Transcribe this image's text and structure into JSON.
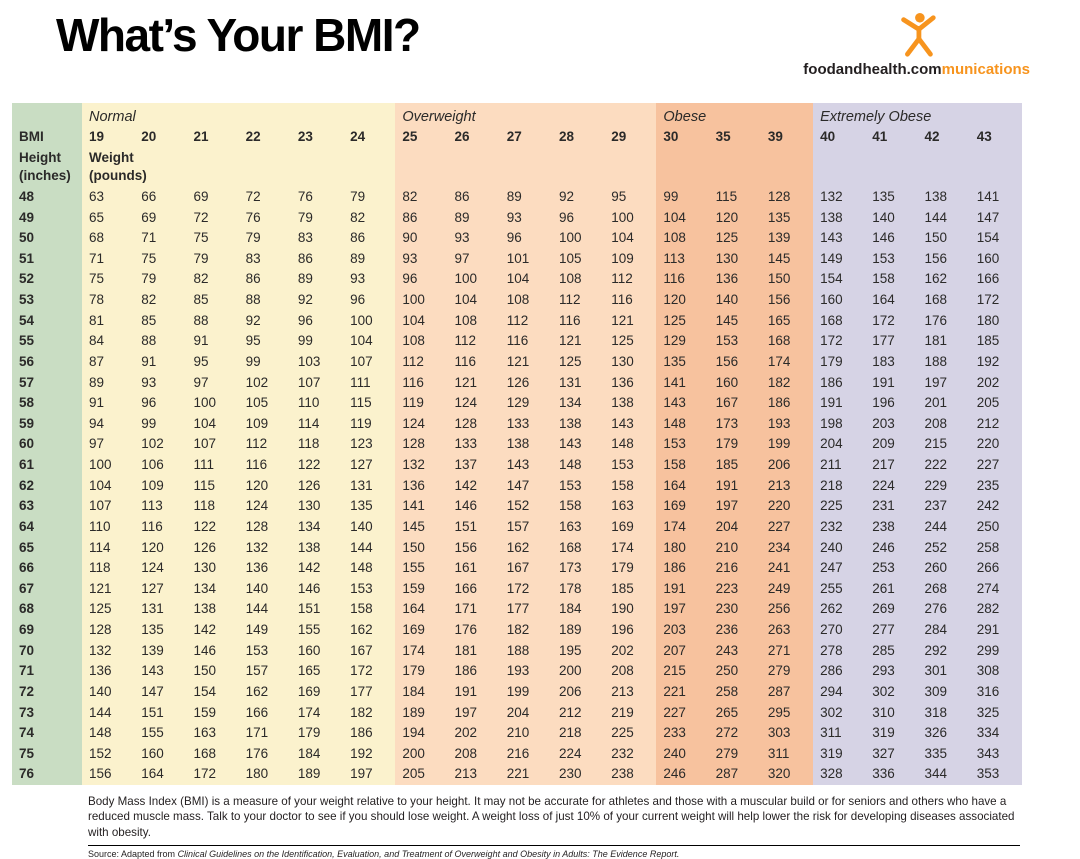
{
  "page": {
    "title": "What’s Your BMI?"
  },
  "logo": {
    "brand_dark": "foodandhealth.com",
    "brand_accent": "munications",
    "accent_color": "#f7941e"
  },
  "table": {
    "corner_bmi": "BMI",
    "height_label": [
      "Height",
      "(inches)"
    ],
    "weight_label": [
      "Weight",
      "(pounds)"
    ]
  },
  "footer": {
    "description": "Body Mass Index (BMI) is a measure of your weight relative to your height. It may not be accurate for athletes and those with a muscular build or for seniors and others who have a reduced muscle mass. Talk to your doctor to see if you should lose weight. A weight loss of just 10% of your current weight will help lower the risk for developing diseases associated with obesity.",
    "source_prefix": "Source: Adapted from ",
    "source_title": "Clinical Guidelines on the Identification, Evaluation, and Treatment of Overweight and Obesity in Adults: The Evidence Report."
  },
  "chart_data": {
    "type": "table",
    "title": "What's Your BMI?",
    "xlabel": "BMI",
    "ylabel": "Height (inches)",
    "values_unit": "Weight (pounds)",
    "height_column": {
      "color": "#c9ddc3"
    },
    "bmi_categories": [
      {
        "label": "Normal",
        "color": "#fbf2cd",
        "bmi": [
          19,
          20,
          21,
          22,
          23,
          24
        ]
      },
      {
        "label": "Overweight",
        "color": "#fcdcc0",
        "bmi": [
          25,
          26,
          27,
          28,
          29
        ]
      },
      {
        "label": "Obese",
        "color": "#f7c29e",
        "bmi": [
          30,
          35,
          39
        ]
      },
      {
        "label": "Extremely Obese",
        "color": "#d6d3e5",
        "bmi": [
          40,
          41,
          42,
          43
        ]
      }
    ],
    "heights_inches": [
      48,
      49,
      50,
      51,
      52,
      53,
      54,
      55,
      56,
      57,
      58,
      59,
      60,
      61,
      62,
      63,
      64,
      65,
      66,
      67,
      68,
      69,
      70,
      71,
      72,
      73,
      74,
      75,
      76
    ],
    "weights_pounds": [
      [
        63,
        66,
        69,
        72,
        76,
        79,
        82,
        86,
        89,
        92,
        95,
        99,
        115,
        128,
        132,
        135,
        138,
        141
      ],
      [
        65,
        69,
        72,
        76,
        79,
        82,
        86,
        89,
        93,
        96,
        100,
        104,
        120,
        135,
        138,
        140,
        144,
        147
      ],
      [
        68,
        71,
        75,
        79,
        83,
        86,
        90,
        93,
        96,
        100,
        104,
        108,
        125,
        139,
        143,
        146,
        150,
        154
      ],
      [
        71,
        75,
        79,
        83,
        86,
        89,
        93,
        97,
        101,
        105,
        109,
        113,
        130,
        145,
        149,
        153,
        156,
        160
      ],
      [
        75,
        79,
        82,
        86,
        89,
        93,
        96,
        100,
        104,
        108,
        112,
        116,
        136,
        150,
        154,
        158,
        162,
        166
      ],
      [
        78,
        82,
        85,
        88,
        92,
        96,
        100,
        104,
        108,
        112,
        116,
        120,
        140,
        156,
        160,
        164,
        168,
        172
      ],
      [
        81,
        85,
        88,
        92,
        96,
        100,
        104,
        108,
        112,
        116,
        121,
        125,
        145,
        165,
        168,
        172,
        176,
        180
      ],
      [
        84,
        88,
        91,
        95,
        99,
        104,
        108,
        112,
        116,
        121,
        125,
        129,
        153,
        168,
        172,
        177,
        181,
        185
      ],
      [
        87,
        91,
        95,
        99,
        103,
        107,
        112,
        116,
        121,
        125,
        130,
        135,
        156,
        174,
        179,
        183,
        188,
        192
      ],
      [
        89,
        93,
        97,
        102,
        107,
        111,
        116,
        121,
        126,
        131,
        136,
        141,
        160,
        182,
        186,
        191,
        197,
        202
      ],
      [
        91,
        96,
        100,
        105,
        110,
        115,
        119,
        124,
        129,
        134,
        138,
        143,
        167,
        186,
        191,
        196,
        201,
        205
      ],
      [
        94,
        99,
        104,
        109,
        114,
        119,
        124,
        128,
        133,
        138,
        143,
        148,
        173,
        193,
        198,
        203,
        208,
        212
      ],
      [
        97,
        102,
        107,
        112,
        118,
        123,
        128,
        133,
        138,
        143,
        148,
        153,
        179,
        199,
        204,
        209,
        215,
        220
      ],
      [
        100,
        106,
        111,
        116,
        122,
        127,
        132,
        137,
        143,
        148,
        153,
        158,
        185,
        206,
        211,
        217,
        222,
        227
      ],
      [
        104,
        109,
        115,
        120,
        126,
        131,
        136,
        142,
        147,
        153,
        158,
        164,
        191,
        213,
        218,
        224,
        229,
        235
      ],
      [
        107,
        113,
        118,
        124,
        130,
        135,
        141,
        146,
        152,
        158,
        163,
        169,
        197,
        220,
        225,
        231,
        237,
        242
      ],
      [
        110,
        116,
        122,
        128,
        134,
        140,
        145,
        151,
        157,
        163,
        169,
        174,
        204,
        227,
        232,
        238,
        244,
        250
      ],
      [
        114,
        120,
        126,
        132,
        138,
        144,
        150,
        156,
        162,
        168,
        174,
        180,
        210,
        234,
        240,
        246,
        252,
        258
      ],
      [
        118,
        124,
        130,
        136,
        142,
        148,
        155,
        161,
        167,
        173,
        179,
        186,
        216,
        241,
        247,
        253,
        260,
        266
      ],
      [
        121,
        127,
        134,
        140,
        146,
        153,
        159,
        166,
        172,
        178,
        185,
        191,
        223,
        249,
        255,
        261,
        268,
        274
      ],
      [
        125,
        131,
        138,
        144,
        151,
        158,
        164,
        171,
        177,
        184,
        190,
        197,
        230,
        256,
        262,
        269,
        276,
        282
      ],
      [
        128,
        135,
        142,
        149,
        155,
        162,
        169,
        176,
        182,
        189,
        196,
        203,
        236,
        263,
        270,
        277,
        284,
        291
      ],
      [
        132,
        139,
        146,
        153,
        160,
        167,
        174,
        181,
        188,
        195,
        202,
        207,
        243,
        271,
        278,
        285,
        292,
        299
      ],
      [
        136,
        143,
        150,
        157,
        165,
        172,
        179,
        186,
        193,
        200,
        208,
        215,
        250,
        279,
        286,
        293,
        301,
        308
      ],
      [
        140,
        147,
        154,
        162,
        169,
        177,
        184,
        191,
        199,
        206,
        213,
        221,
        258,
        287,
        294,
        302,
        309,
        316
      ],
      [
        144,
        151,
        159,
        166,
        174,
        182,
        189,
        197,
        204,
        212,
        219,
        227,
        265,
        295,
        302,
        310,
        318,
        325
      ],
      [
        148,
        155,
        163,
        171,
        179,
        186,
        194,
        202,
        210,
        218,
        225,
        233,
        272,
        303,
        311,
        319,
        326,
        334
      ],
      [
        152,
        160,
        168,
        176,
        184,
        192,
        200,
        208,
        216,
        224,
        232,
        240,
        279,
        311,
        319,
        327,
        335,
        343
      ],
      [
        156,
        164,
        172,
        180,
        189,
        197,
        205,
        213,
        221,
        230,
        238,
        246,
        287,
        320,
        328,
        336,
        344,
        353
      ]
    ]
  }
}
